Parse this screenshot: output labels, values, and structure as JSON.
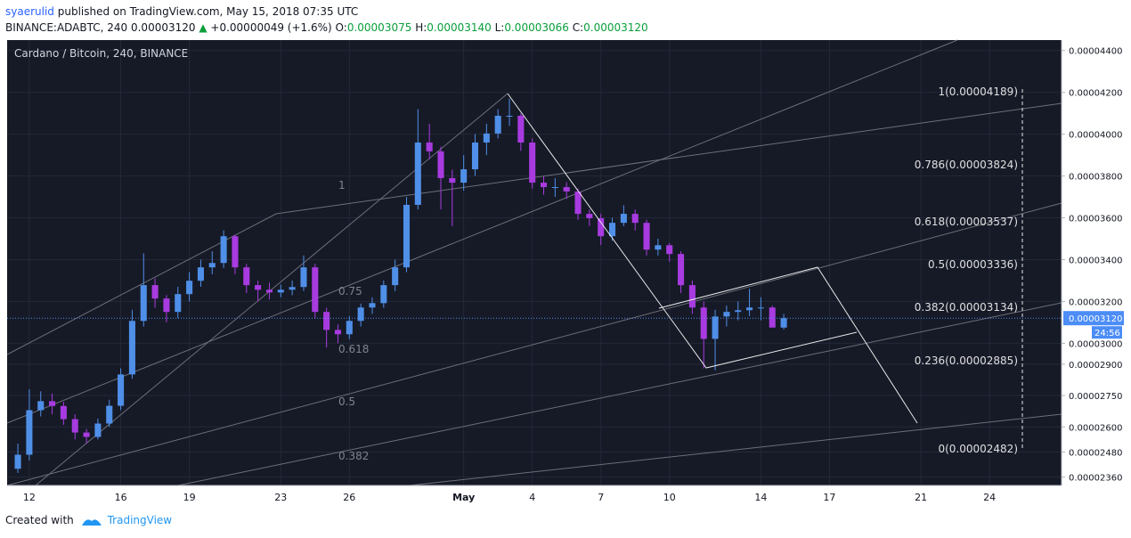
{
  "header": {
    "author": "syaerulid",
    "published": "published on TradingView.com, May 15, 2018 07:35 UTC",
    "symbol": "BINANCE:ADABTC, 240",
    "last": "0.00003120",
    "change": "+0.00000049 (+1.6%)",
    "o_label": "O:",
    "o": "0.00003075",
    "h_label": "H:",
    "h": "0.00003140",
    "l_label": "L:",
    "l": "0.00003066",
    "c_label": "C:",
    "c": "0.00003120"
  },
  "chart_data": {
    "type": "candlestick",
    "title": "Cardano / Bitcoin, 240, BINANCE",
    "up_color": "#4f8fe8",
    "down_color": "#a83be0",
    "ylim": [
      2.32e-05,
      4.45e-05
    ],
    "yticks": [
      {
        "value": 4.4e-05,
        "label": "0.00004400"
      },
      {
        "value": 4.2e-05,
        "label": "0.00004200"
      },
      {
        "value": 4e-05,
        "label": "0.00004000"
      },
      {
        "value": 3.8e-05,
        "label": "0.00003800"
      },
      {
        "value": 3.6e-05,
        "label": "0.00003600"
      },
      {
        "value": 3.4e-05,
        "label": "0.00003400"
      },
      {
        "value": 3.2e-05,
        "label": "0.00003200"
      },
      {
        "value": 3e-05,
        "label": "0.00003000"
      },
      {
        "value": 2.9e-05,
        "label": "0.00002900"
      },
      {
        "value": 2.75e-05,
        "label": "0.00002750"
      },
      {
        "value": 2.6e-05,
        "label": "0.00002600"
      },
      {
        "value": 2.48e-05,
        "label": "0.00002480"
      },
      {
        "value": 2.36e-05,
        "label": "0.00002360"
      }
    ],
    "xlim": [
      11.03,
      57.15
    ],
    "xticks": [
      {
        "value": 12,
        "label": "12"
      },
      {
        "value": 16,
        "label": "16"
      },
      {
        "value": 19,
        "label": "19"
      },
      {
        "value": 23,
        "label": "23"
      },
      {
        "value": 26,
        "label": "26"
      },
      {
        "value": 31,
        "label": "May"
      },
      {
        "value": 34,
        "label": "4"
      },
      {
        "value": 37,
        "label": "7"
      },
      {
        "value": 40,
        "label": "10"
      },
      {
        "value": 44,
        "label": "14"
      },
      {
        "value": 47,
        "label": "17"
      },
      {
        "value": 51,
        "label": "21"
      },
      {
        "value": 54,
        "label": "24"
      }
    ],
    "x": [
      11.5,
      12,
      12.5,
      13,
      13.5,
      14,
      14.5,
      15,
      15.5,
      16,
      16.5,
      17,
      17.5,
      18,
      18.5,
      19,
      19.5,
      20,
      20.5,
      21,
      21.5,
      22,
      22.5,
      23,
      23.5,
      24,
      24.5,
      25,
      25.5,
      26,
      26.5,
      27,
      27.5,
      28,
      28.5,
      29,
      29.5,
      30,
      30.5,
      31,
      31.5,
      32,
      32.5,
      33,
      33.5,
      34,
      34.5,
      35,
      35.5,
      36,
      36.5,
      37,
      37.5,
      38,
      38.5,
      39,
      39.5,
      40,
      40.5,
      41,
      41.5,
      42,
      42.5,
      43,
      43.5,
      44,
      44.5,
      45
    ],
    "open": [
      2.4e-05,
      2.467e-05,
      2.68e-05,
      2.723e-05,
      2.7e-05,
      2.637e-05,
      2.573e-05,
      2.552e-05,
      2.616e-05,
      2.701e-05,
      2.851e-05,
      3.107e-05,
      3.278e-05,
      3.214e-05,
      3.15e-05,
      3.235e-05,
      3.299e-05,
      3.363e-05,
      3.384e-05,
      3.512e-05,
      3.363e-05,
      3.278e-05,
      3.256e-05,
      3.243e-05,
      3.256e-05,
      3.269e-05,
      3.363e-05,
      3.15e-05,
      3.064e-05,
      3.043e-05,
      3.107e-05,
      3.171e-05,
      3.192e-05,
      3.278e-05,
      3.363e-05,
      3.662e-05,
      3.96e-05,
      3.918e-05,
      3.79e-05,
      3.768e-05,
      3.832e-05,
      3.96e-05,
      4.003e-05,
      4.088e-05,
      4.088e-05,
      3.96e-05,
      3.768e-05,
      3.747e-05,
      3.747e-05,
      3.726e-05,
      3.619e-05,
      3.598e-05,
      3.512e-05,
      3.576e-05,
      3.619e-05,
      3.576e-05,
      3.448e-05,
      3.469e-05,
      3.427e-05,
      3.278e-05,
      3.171e-05,
      3.021e-05,
      3.128e-05,
      3.15e-05,
      3.158e-05,
      3.171e-05,
      3.171e-05,
      3.075e-05
    ],
    "high": [
      2.52e-05,
      2.78e-05,
      2.77e-05,
      2.76e-05,
      2.72e-05,
      2.66e-05,
      2.59e-05,
      2.64e-05,
      2.73e-05,
      2.88e-05,
      3.16e-05,
      3.43e-05,
      3.31e-05,
      3.23e-05,
      3.27e-05,
      3.34e-05,
      3.4e-05,
      3.44e-05,
      3.54e-05,
      3.52e-05,
      3.38e-05,
      3.3e-05,
      3.29e-05,
      3.28e-05,
      3.3e-05,
      3.42e-05,
      3.38e-05,
      3.17e-05,
      3.09e-05,
      3.13e-05,
      3.19e-05,
      3.22e-05,
      3.3e-05,
      3.4e-05,
      3.7e-05,
      4.12e-05,
      4.05e-05,
      3.94e-05,
      3.83e-05,
      3.9e-05,
      4e-05,
      4.05e-05,
      4.12e-05,
      4.17e-05,
      4.1e-05,
      3.98e-05,
      3.8e-05,
      3.79e-05,
      3.77e-05,
      3.74e-05,
      3.64e-05,
      3.62e-05,
      3.6e-05,
      3.66e-05,
      3.64e-05,
      3.59e-05,
      3.5e-05,
      3.48e-05,
      3.44e-05,
      3.3e-05,
      3.2e-05,
      3.16e-05,
      3.18e-05,
      3.2e-05,
      3.26e-05,
      3.22e-05,
      3.18e-05,
      3.14e-05
    ],
    "low": [
      2.38e-05,
      2.44e-05,
      2.65e-05,
      2.66e-05,
      2.61e-05,
      2.54e-05,
      2.52e-05,
      2.54e-05,
      2.6e-05,
      2.68e-05,
      2.83e-05,
      3.08e-05,
      3.17e-05,
      3.1e-05,
      3.12e-05,
      3.2e-05,
      3.27e-05,
      3.33e-05,
      3.36e-05,
      3.33e-05,
      3.24e-05,
      3.2e-05,
      3.21e-05,
      3.22e-05,
      3.23e-05,
      3.25e-05,
      3.12e-05,
      2.98e-05,
      3e-05,
      3.02e-05,
      3.08e-05,
      3.14e-05,
      3.17e-05,
      3.25e-05,
      3.34e-05,
      3.64e-05,
      3.88e-05,
      3.64e-05,
      3.56e-05,
      3.73e-05,
      3.8e-05,
      3.9e-05,
      3.98e-05,
      4.04e-05,
      3.92e-05,
      3.74e-05,
      3.71e-05,
      3.7e-05,
      3.69e-05,
      3.59e-05,
      3.56e-05,
      3.47e-05,
      3.49e-05,
      3.56e-05,
      3.54e-05,
      3.42e-05,
      3.42e-05,
      3.39e-05,
      3.24e-05,
      3.14e-05,
      2.88e-05,
      2.87e-05,
      3.08e-05,
      3.11e-05,
      3.13e-05,
      3.11e-05,
      3.09e-05,
      3.066e-05
    ],
    "close": [
      2.467e-05,
      2.68e-05,
      2.723e-05,
      2.7e-05,
      2.637e-05,
      2.573e-05,
      2.552e-05,
      2.616e-05,
      2.701e-05,
      2.851e-05,
      3.107e-05,
      3.278e-05,
      3.214e-05,
      3.15e-05,
      3.235e-05,
      3.299e-05,
      3.363e-05,
      3.384e-05,
      3.512e-05,
      3.363e-05,
      3.278e-05,
      3.256e-05,
      3.243e-05,
      3.256e-05,
      3.269e-05,
      3.363e-05,
      3.15e-05,
      3.064e-05,
      3.043e-05,
      3.107e-05,
      3.171e-05,
      3.192e-05,
      3.278e-05,
      3.363e-05,
      3.662e-05,
      3.96e-05,
      3.918e-05,
      3.79e-05,
      3.768e-05,
      3.832e-05,
      3.96e-05,
      4.003e-05,
      4.088e-05,
      4.088e-05,
      3.96e-05,
      3.768e-05,
      3.747e-05,
      3.747e-05,
      3.726e-05,
      3.619e-05,
      3.598e-05,
      3.512e-05,
      3.576e-05,
      3.619e-05,
      3.576e-05,
      3.448e-05,
      3.469e-05,
      3.427e-05,
      3.278e-05,
      3.171e-05,
      3.021e-05,
      3.128e-05,
      3.15e-05,
      3.158e-05,
      3.171e-05,
      3.171e-05,
      3.075e-05,
      3.12e-05
    ],
    "last_price": 3.12e-05,
    "last_price_label": "0.00003120",
    "countdown": "24:56",
    "fib_levels": [
      "1(0.00004189)",
      "0.786(0.00003824)",
      "0.618(0.00003537)",
      "0.5(0.00003336)",
      "0.382(0.00003134)",
      "0.236(0.00002885)",
      "0(0.00002482)"
    ],
    "fan_levels": [
      "1",
      "0.75",
      "0.618",
      "0.5",
      "0.382"
    ]
  },
  "footer": {
    "created": "Created with",
    "brand": "TradingView"
  }
}
